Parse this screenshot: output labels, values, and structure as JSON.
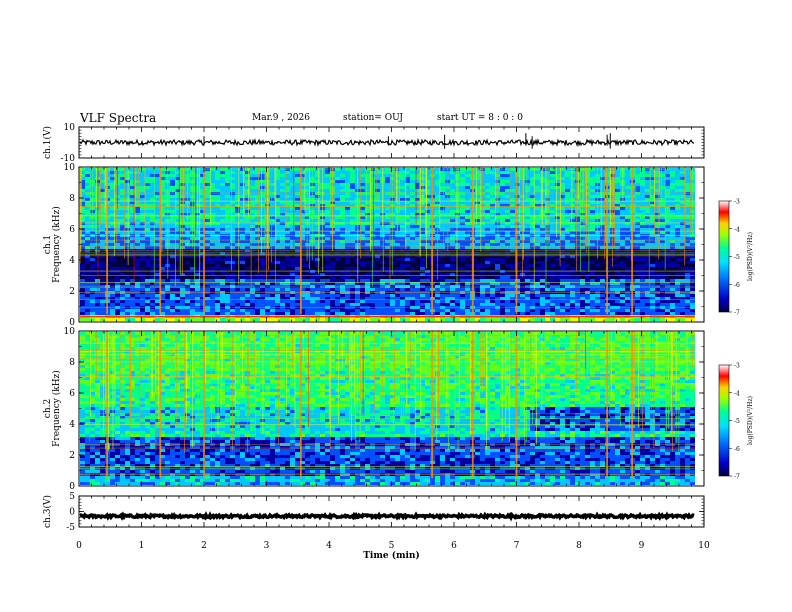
{
  "header": {
    "title": "VLF Spectra",
    "date": "Mar.9  , 2026",
    "station": "station= OUJ",
    "start": "start  UT  =   8  : 0  : 0"
  },
  "colors": {
    "trace": "#000000",
    "colormap": [
      "#000040",
      "#0000a0",
      "#0050ff",
      "#00c8ff",
      "#00ff90",
      "#60ff20",
      "#e8ff00",
      "#ff8c00",
      "#ff0000",
      "#ffffff"
    ]
  },
  "chart_data": [
    {
      "type": "line",
      "name": "ch1-waveform",
      "ylabel": "ch.1(V)",
      "ylim": [
        -10,
        10
      ],
      "yticks": [
        "10",
        "-10"
      ],
      "baseline": 0,
      "xlim": [
        0,
        10
      ]
    },
    {
      "type": "heatmap",
      "name": "ch1-spectrogram",
      "ylabel": "ch.1\nFrequency  (kHz)",
      "ylim": [
        0,
        10
      ],
      "yticks": [
        "0",
        "2",
        "4",
        "6",
        "8",
        "10"
      ],
      "xlim": [
        0,
        10
      ],
      "data_xmax": 9.85,
      "colorbar": {
        "label": "log(PSD)(V²/Hz)",
        "range": [
          -7,
          -3
        ],
        "ticks": [
          "-3",
          "-4",
          "-5",
          "-6",
          "-7"
        ]
      },
      "bursts_min": [
        0.45,
        1.3,
        2.0,
        3.55,
        5.65,
        6.3,
        7.0,
        8.45,
        8.85
      ]
    },
    {
      "type": "heatmap",
      "name": "ch2-spectrogram",
      "ylabel": "ch.2\nFrequency  (kHz)",
      "ylim": [
        0,
        10
      ],
      "yticks": [
        "0",
        "2",
        "4",
        "6",
        "8",
        "10"
      ],
      "xlim": [
        0,
        10
      ],
      "data_xmax": 9.85,
      "colorbar": {
        "label": "log(PSD)(V²/Hz)",
        "range": [
          -7,
          -3
        ],
        "ticks": [
          "-3",
          "-4",
          "-5",
          "-6",
          "-7"
        ]
      },
      "bursts_min": [
        0.45,
        1.3,
        2.0,
        3.55,
        5.65,
        6.3,
        7.0,
        8.45,
        8.85
      ]
    },
    {
      "type": "line",
      "name": "ch3-waveform",
      "ylabel": "ch.3(V)",
      "ylim": [
        -5,
        5
      ],
      "yticks": [
        "5",
        "0",
        "-5"
      ],
      "baseline": -1.5,
      "xlim": [
        0,
        10
      ]
    }
  ],
  "xaxis": {
    "label": "Time  (min)",
    "ticks": [
      "0",
      "1",
      "2",
      "3",
      "4",
      "5",
      "6",
      "7",
      "8",
      "9",
      "10"
    ]
  }
}
